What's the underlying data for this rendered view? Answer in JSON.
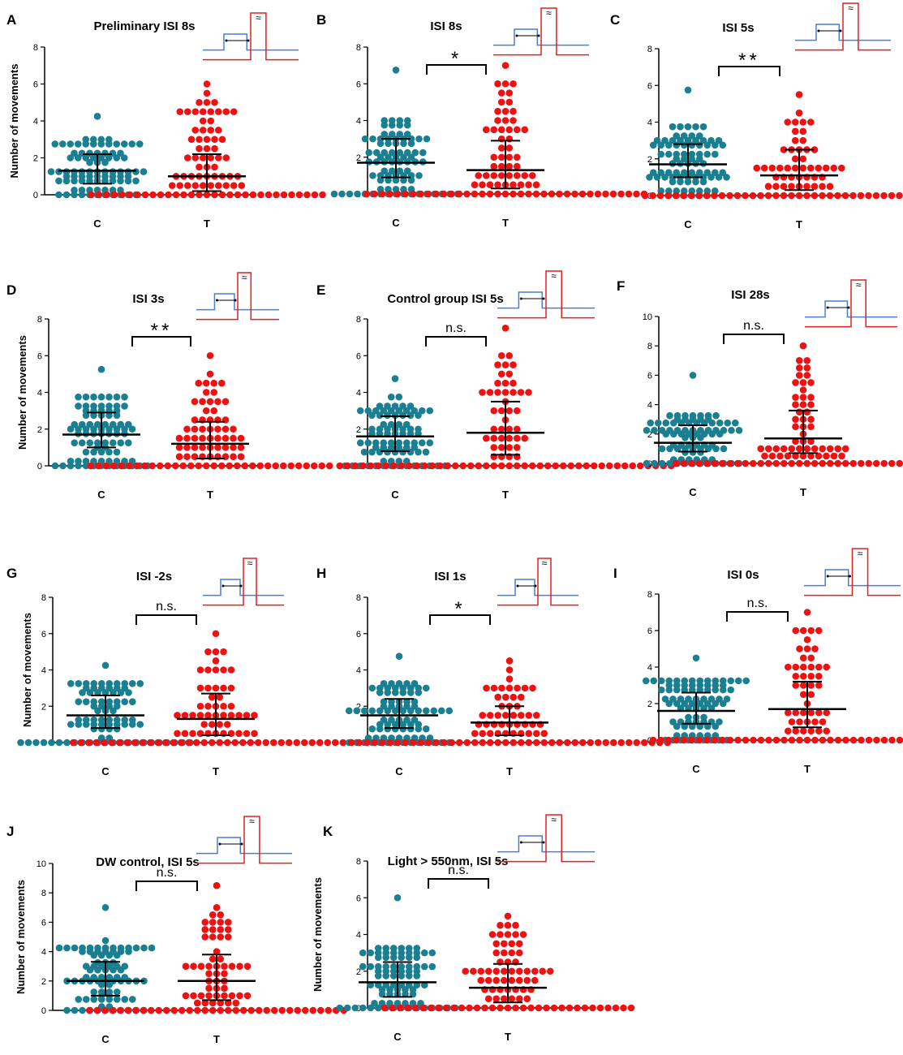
{
  "figure": {
    "y_axis_label": "Number of movements",
    "colors": {
      "control": "#1a7f90",
      "treatment": "#ee1111",
      "stim_blue": "#4a7fd0",
      "stim_red": "#e02020",
      "ink": "#000000"
    }
  },
  "chart_data": [
    {
      "panel": "A",
      "type": "scatter",
      "title": "Preliminary ISI 8s",
      "categories": [
        "C",
        "T"
      ],
      "ylim": [
        0,
        8
      ],
      "yticks": [
        0,
        2,
        4,
        6,
        8
      ],
      "significance": "",
      "series": [
        {
          "name": "C",
          "median": 1.3,
          "q1": 0.6,
          "q3": 2.2,
          "max": 4.3
        },
        {
          "name": "T",
          "median": 1.0,
          "q1": 0.2,
          "q3": 2.2,
          "max": 6.0
        }
      ]
    },
    {
      "panel": "B",
      "type": "scatter",
      "title": "ISI 8s",
      "categories": [
        "C",
        "T"
      ],
      "ylim": [
        0,
        8
      ],
      "yticks": [
        0,
        2,
        4,
        6,
        8
      ],
      "significance": "*",
      "series": [
        {
          "name": "C",
          "median": 1.7,
          "q1": 0.9,
          "q3": 3.0,
          "max": 6.8
        },
        {
          "name": "T",
          "median": 1.3,
          "q1": 0.3,
          "q3": 2.9,
          "max": 7.0
        }
      ]
    },
    {
      "panel": "C",
      "type": "scatter",
      "title": "ISI 5s",
      "categories": [
        "C",
        "T"
      ],
      "ylim": [
        0,
        8
      ],
      "yticks": [
        0,
        2,
        4,
        6,
        8
      ],
      "significance": "**",
      "series": [
        {
          "name": "C",
          "median": 1.7,
          "q1": 1.0,
          "q3": 2.8,
          "max": 5.8
        },
        {
          "name": "T",
          "median": 1.1,
          "q1": 0.3,
          "q3": 2.5,
          "max": 5.5
        }
      ]
    },
    {
      "panel": "D",
      "type": "scatter",
      "title": "ISI 3s",
      "categories": [
        "C",
        "T"
      ],
      "ylim": [
        0,
        8
      ],
      "yticks": [
        0,
        2,
        4,
        6,
        8
      ],
      "significance": "**",
      "series": [
        {
          "name": "C",
          "median": 1.7,
          "q1": 1.0,
          "q3": 2.9,
          "max": 5.3
        },
        {
          "name": "T",
          "median": 1.2,
          "q1": 0.4,
          "q3": 2.4,
          "max": 6.0
        }
      ]
    },
    {
      "panel": "E",
      "type": "scatter",
      "title": "Control group ISI 5s",
      "categories": [
        "C",
        "T"
      ],
      "ylim": [
        0,
        8
      ],
      "yticks": [
        0,
        2,
        4,
        6,
        8
      ],
      "significance": "n.s.",
      "series": [
        {
          "name": "C",
          "median": 1.6,
          "q1": 0.8,
          "q3": 2.7,
          "max": 4.8
        },
        {
          "name": "T",
          "median": 1.8,
          "q1": 0.6,
          "q3": 3.5,
          "max": 7.5
        }
      ]
    },
    {
      "panel": "F",
      "type": "scatter",
      "title": "ISI 28s",
      "categories": [
        "C",
        "T"
      ],
      "ylim": [
        0,
        10
      ],
      "yticks": [
        0,
        2,
        4,
        6,
        8,
        10
      ],
      "significance": "n.s.",
      "series": [
        {
          "name": "C",
          "median": 1.4,
          "q1": 0.8,
          "q3": 2.6,
          "max": 6.1
        },
        {
          "name": "T",
          "median": 1.7,
          "q1": 0.7,
          "q3": 3.6,
          "max": 8.0
        }
      ]
    },
    {
      "panel": "G",
      "type": "scatter",
      "title": "ISI -2s",
      "categories": [
        "C",
        "T"
      ],
      "ylim": [
        0,
        8
      ],
      "yticks": [
        0,
        2,
        4,
        6,
        8
      ],
      "significance": "n.s.",
      "series": [
        {
          "name": "C",
          "median": 1.5,
          "q1": 0.8,
          "q3": 2.6,
          "max": 4.3
        },
        {
          "name": "T",
          "median": 1.3,
          "q1": 0.4,
          "q3": 2.7,
          "max": 6.0
        }
      ]
    },
    {
      "panel": "H",
      "type": "scatter",
      "title": "ISI 1s",
      "categories": [
        "C",
        "T"
      ],
      "ylim": [
        0,
        8
      ],
      "yticks": [
        0,
        2,
        4,
        6,
        8
      ],
      "significance": "*",
      "series": [
        {
          "name": "C",
          "median": 1.5,
          "q1": 0.8,
          "q3": 2.4,
          "max": 4.8
        },
        {
          "name": "T",
          "median": 1.1,
          "q1": 0.4,
          "q3": 2.0,
          "max": 4.5
        }
      ]
    },
    {
      "panel": "I",
      "type": "scatter",
      "title": "ISI 0s",
      "categories": [
        "C",
        "T"
      ],
      "ylim": [
        0,
        8
      ],
      "yticks": [
        0,
        2,
        4,
        6,
        8
      ],
      "significance": "n.s.",
      "series": [
        {
          "name": "C",
          "median": 1.6,
          "q1": 0.9,
          "q3": 2.6,
          "max": 4.5
        },
        {
          "name": "T",
          "median": 1.7,
          "q1": 0.7,
          "q3": 3.2,
          "max": 7.0
        }
      ]
    },
    {
      "panel": "J",
      "type": "scatter",
      "title": "DW control, ISI 5s",
      "categories": [
        "C",
        "T"
      ],
      "ylim": [
        0,
        10
      ],
      "yticks": [
        0,
        2,
        4,
        6,
        8,
        10
      ],
      "significance": "n.s.",
      "series": [
        {
          "name": "C",
          "median": 2.0,
          "q1": 1.0,
          "q3": 3.3,
          "max": 7.1
        },
        {
          "name": "T",
          "median": 2.0,
          "q1": 0.7,
          "q3": 3.8,
          "max": 8.5
        }
      ]
    },
    {
      "panel": "K",
      "type": "scatter",
      "title": "Light > 550nm, ISI 5s",
      "categories": [
        "C",
        "T"
      ],
      "ylim": [
        0,
        8
      ],
      "yticks": [
        0,
        2,
        4,
        6,
        8
      ],
      "significance": "n.s.",
      "series": [
        {
          "name": "C",
          "median": 1.4,
          "q1": 0.6,
          "q3": 2.5,
          "max": 6.0
        },
        {
          "name": "T",
          "median": 1.1,
          "q1": 0.3,
          "q3": 2.4,
          "max": 5.0
        }
      ]
    }
  ]
}
